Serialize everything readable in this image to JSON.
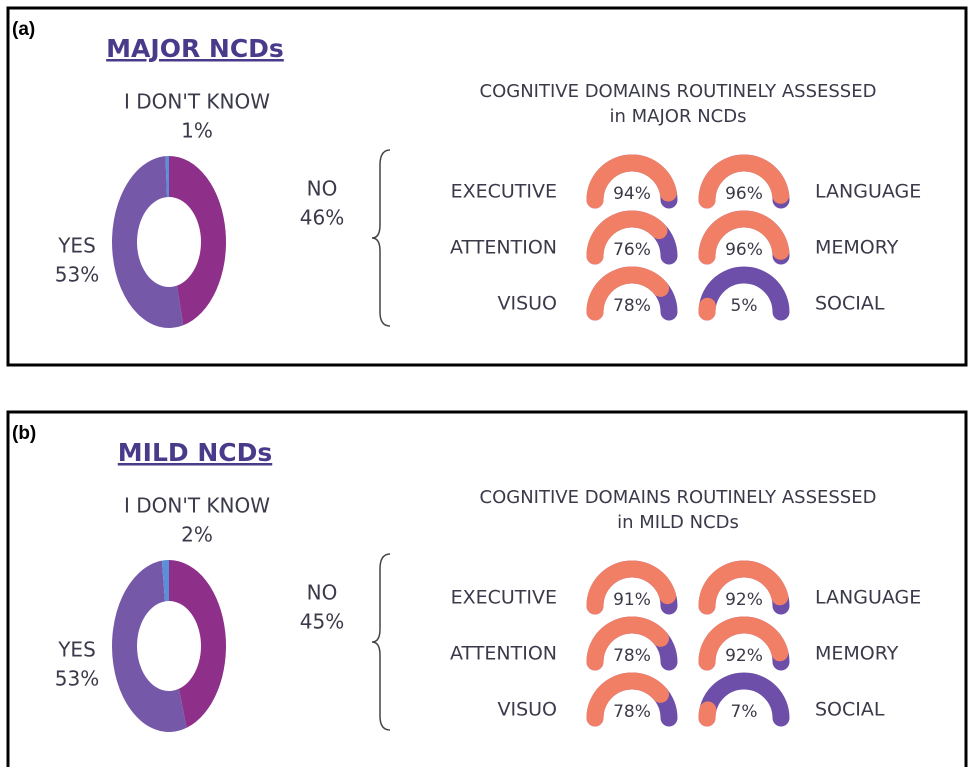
{
  "chart_data": [
    {
      "type": "pie",
      "panel_label": "(a)",
      "title": "MAJOR NCDs",
      "categories": [
        "NO",
        "YES",
        "I DON'T KNOW"
      ],
      "values": [
        46,
        53,
        1
      ],
      "value_labels": [
        "46%",
        "53%",
        "1%"
      ],
      "colors": [
        "#8e2f8a",
        "#7558a8",
        "#5b8fd8"
      ]
    },
    {
      "type": "gauge",
      "title": "COGNITIVE DOMAINS ROUTINELY ASSESSED",
      "subtitle": "in MAJOR NCDs",
      "categories": [
        "EXECUTIVE",
        "LANGUAGE",
        "ATTENTION",
        "MEMORY",
        "VISUO",
        "SOCIAL"
      ],
      "values": [
        94,
        96,
        76,
        96,
        78,
        5
      ],
      "value_labels": [
        "94%",
        "96%",
        "76%",
        "96%",
        "78%",
        "5%"
      ],
      "ylim": [
        0,
        100
      ],
      "color": "#f07f66",
      "track_color": "#6d4ea8"
    },
    {
      "type": "pie",
      "panel_label": "(b)",
      "title": "MILD NCDs",
      "categories": [
        "NO",
        "YES",
        "I DON'T KNOW"
      ],
      "values": [
        45,
        53,
        2
      ],
      "value_labels": [
        "45%",
        "53%",
        "2%"
      ],
      "colors": [
        "#8e2f8a",
        "#7558a8",
        "#5b8fd8"
      ]
    },
    {
      "type": "gauge",
      "title": "COGNITIVE DOMAINS ROUTINELY ASSESSED",
      "subtitle": "in MILD NCDs",
      "categories": [
        "EXECUTIVE",
        "LANGUAGE",
        "ATTENTION",
        "MEMORY",
        "VISUO",
        "SOCIAL"
      ],
      "values": [
        91,
        92,
        78,
        92,
        78,
        7
      ],
      "value_labels": [
        "91%",
        "92%",
        "78%",
        "92%",
        "78%",
        "7%"
      ],
      "ylim": [
        0,
        100
      ],
      "color": "#f07f66",
      "track_color": "#6d4ea8"
    }
  ]
}
